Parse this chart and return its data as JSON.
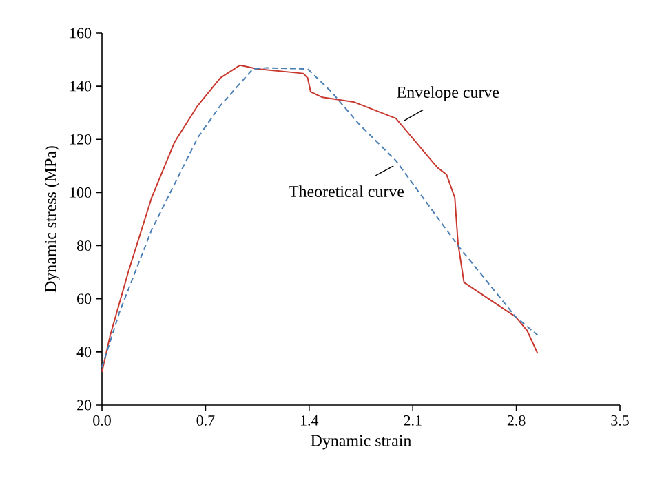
{
  "chart_data": {
    "type": "line",
    "xlabel": "Dynamic strain",
    "ylabel": "Dynamic stress (MPa)",
    "xlim": [
      0,
      3.5
    ],
    "ylim": [
      20,
      160
    ],
    "xticks": [
      {
        "value": 0,
        "label": "0.0"
      },
      0.7,
      1.4,
      2.1,
      2.8,
      3.5
    ],
    "yticks": [
      20,
      40,
      60,
      80,
      100,
      120,
      140,
      160
    ],
    "grid": false,
    "marker": "none",
    "series": [
      {
        "color": "#c8382e",
        "line_style": "solid",
        "x": [
          0,
          0.056,
          0.18,
          0.336,
          0.49,
          0.647,
          0.8,
          0.933,
          1.05,
          1.36,
          1.39,
          1.41,
          1.49,
          1.7,
          1.986,
          2.266,
          2.328,
          2.384,
          2.406,
          2.446,
          2.795,
          2.873,
          2.944
        ],
        "values": [
          32.5,
          46.3,
          70.5,
          98.1,
          118.9,
          132.7,
          143.1,
          147.9,
          146.5,
          144.8,
          143.1,
          137.9,
          135.8,
          134.1,
          127.9,
          109.4,
          106.8,
          98.1,
          80.8,
          66.2,
          53.2,
          48.0,
          39.4
        ]
      },
      {
        "color": "#4a7fb5",
        "line_style": "dashed",
        "x": [
          0,
          0.118,
          0.336,
          0.647,
          0.8,
          1.02,
          1.11,
          1.39,
          1.55,
          1.736,
          1.986,
          2.406,
          2.795,
          2.944
        ],
        "values": [
          34.2,
          54.9,
          86,
          120.6,
          132.7,
          146.5,
          146.9,
          146.5,
          137.9,
          125.8,
          112,
          80,
          53.2,
          46.3
        ]
      }
    ],
    "annotations": [
      {
        "text": "Envelope curve",
        "x": 2.04,
        "y": 127
      },
      {
        "text": "Theoretical curve",
        "x": 1.97,
        "y": 110
      }
    ]
  }
}
